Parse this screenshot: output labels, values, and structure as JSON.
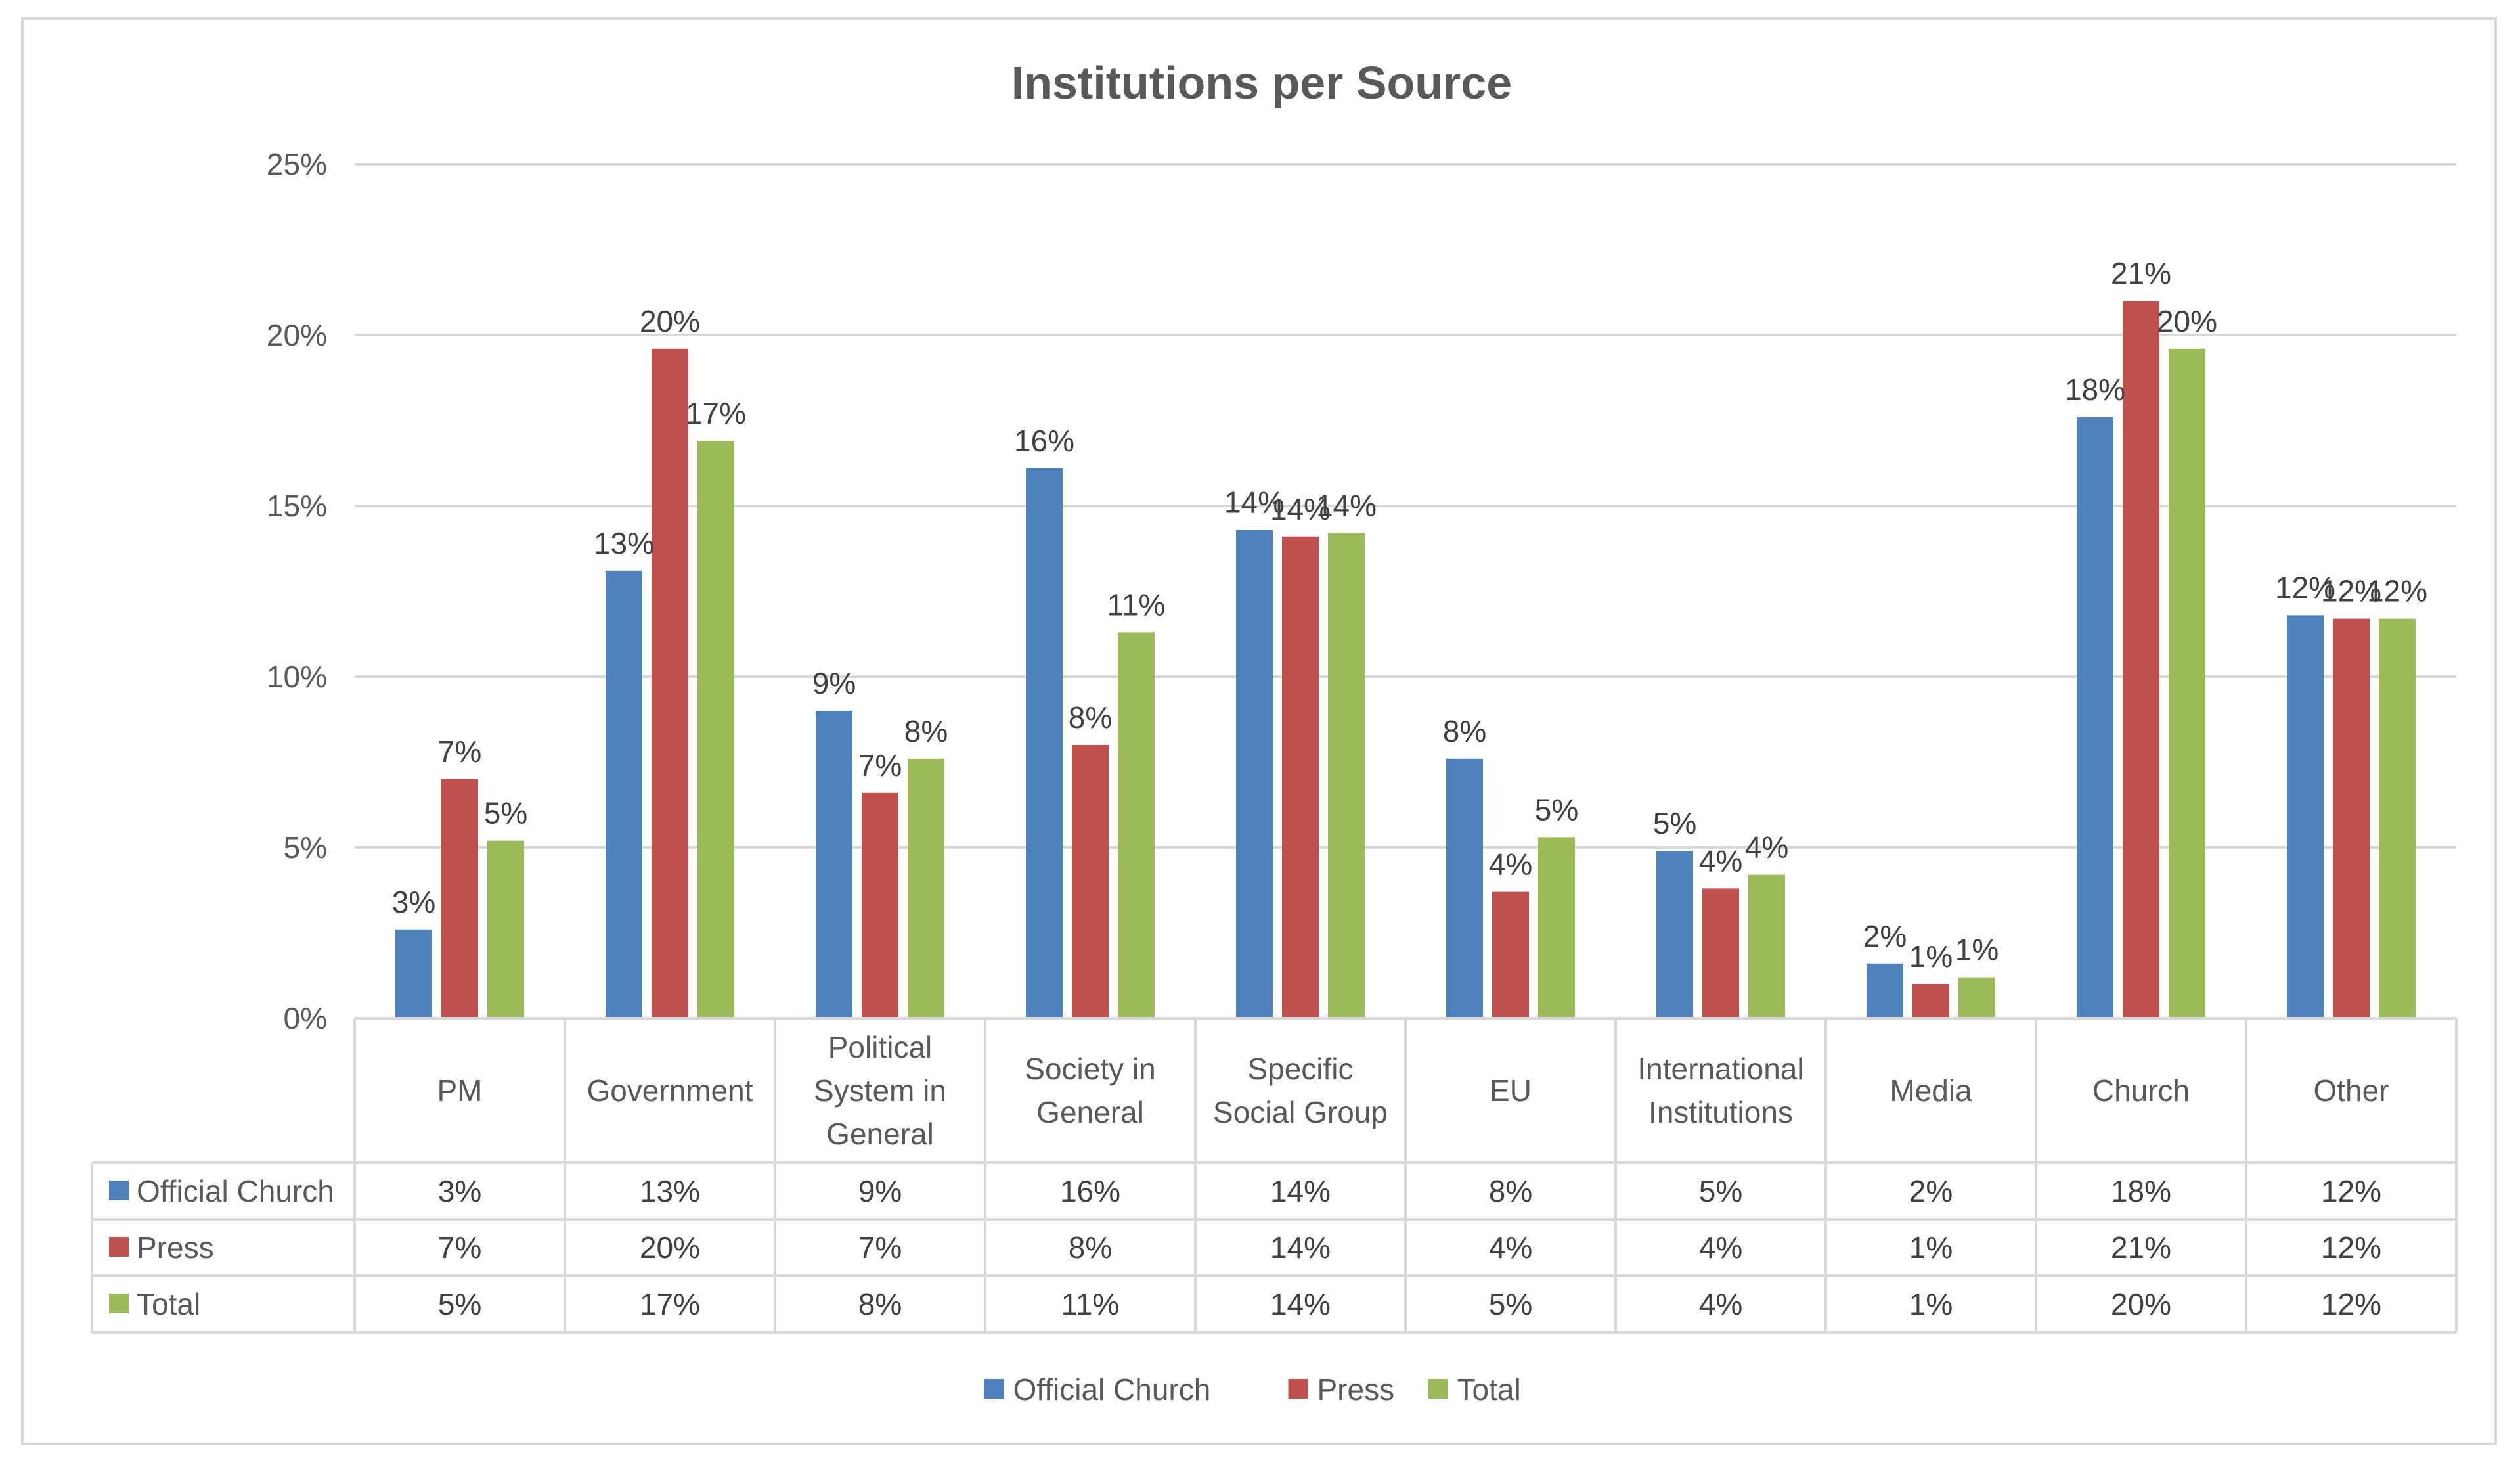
{
  "chart_data": {
    "type": "bar",
    "title": "Institutions per Source",
    "categories": [
      [
        "PM"
      ],
      [
        "Government"
      ],
      [
        "Political",
        "System in",
        "General"
      ],
      [
        "Society in",
        "General"
      ],
      [
        "Specific",
        "Social Group"
      ],
      [
        "EU"
      ],
      [
        "International",
        "Institutions"
      ],
      [
        "Media"
      ],
      [
        "Church"
      ],
      [
        "Other"
      ]
    ],
    "series": [
      {
        "name": "Official Church",
        "color": "#4f81bd",
        "values": [
          2.6,
          13.1,
          9.0,
          16.1,
          14.3,
          7.6,
          4.9,
          1.6,
          17.6,
          11.8
        ],
        "labels": [
          "3%",
          "13%",
          "9%",
          "16%",
          "14%",
          "8%",
          "5%",
          "2%",
          "18%",
          "12%"
        ]
      },
      {
        "name": "Press",
        "color": "#c0504d",
        "values": [
          7.0,
          19.6,
          6.6,
          8.0,
          14.1,
          3.7,
          3.8,
          1.0,
          21.0,
          11.7
        ],
        "labels": [
          "7%",
          "20%",
          "7%",
          "8%",
          "14%",
          "4%",
          "4%",
          "1%",
          "21%",
          "12%"
        ]
      },
      {
        "name": "Total",
        "color": "#9bbb59",
        "values": [
          5.2,
          16.9,
          7.6,
          11.3,
          14.2,
          5.3,
          4.2,
          1.2,
          19.6,
          11.7
        ],
        "labels": [
          "5%",
          "17%",
          "8%",
          "11%",
          "14%",
          "5%",
          "4%",
          "1%",
          "20%",
          "12%"
        ]
      }
    ],
    "ylim": [
      0,
      25
    ],
    "yticks": [
      0,
      5,
      10,
      15,
      20,
      25
    ],
    "ytick_labels": [
      "0%",
      "5%",
      "10%",
      "15%",
      "20%",
      "25%"
    ],
    "ylabel": "",
    "xlabel": "",
    "grid": true,
    "legend": "bottom",
    "data_table": true
  }
}
